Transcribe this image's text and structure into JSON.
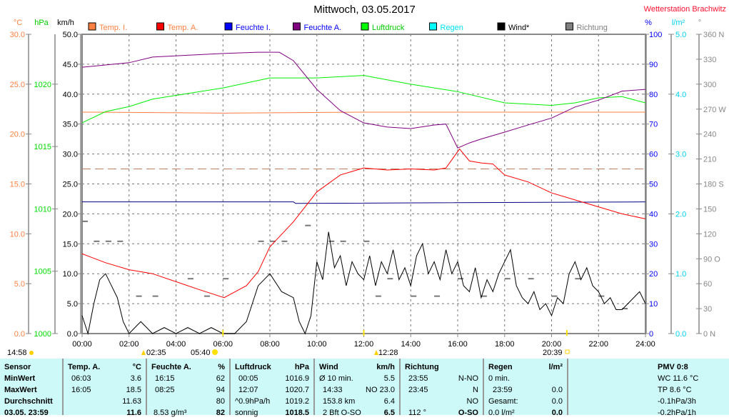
{
  "header": {
    "title": "Mittwoch, 03.05.2017",
    "station": "Wetterstation Brachwitz"
  },
  "axes_units": {
    "temp": "°C",
    "pressure": "hPa",
    "wind": "km/h",
    "humidity": "%",
    "rain": "l/m²",
    "direction": "°"
  },
  "legend": [
    {
      "label": "Temp. I.",
      "color": "#ff8040",
      "text_color": "#ff8040"
    },
    {
      "label": "Temp. A.",
      "color": "#ff0000",
      "text_color": "#ff8040"
    },
    {
      "label": "Feuchte I.",
      "color": "#0000ff",
      "text_color": "#0000ff"
    },
    {
      "label": "Feuchte A.",
      "color": "#800080",
      "text_color": "#0000ff"
    },
    {
      "label": "Luftdruck",
      "color": "#00ff00",
      "text_color": "#00cc00"
    },
    {
      "label": "Regen",
      "color": "#00ffff",
      "text_color": "#00e0f0"
    },
    {
      "label": "Wind*",
      "color": "#000000",
      "text_color": "#000000"
    },
    {
      "label": "Richtung",
      "color": "#808080",
      "text_color": "#808080"
    }
  ],
  "chart_data": {
    "type": "line",
    "title": "Mittwoch, 03.05.2017",
    "x_ticks": [
      "00:00",
      "02:00",
      "04:00",
      "06:00",
      "08:00",
      "10:00",
      "12:00",
      "14:00",
      "16:00",
      "18:00",
      "20:00",
      "22:00",
      "24:00"
    ],
    "xlim": [
      0,
      24
    ],
    "y_axes": {
      "temp": {
        "ticks": [
          "0.0",
          "5.0",
          "10.0",
          "15.0",
          "20.0",
          "25.0",
          "30.0"
        ],
        "range": [
          0,
          30
        ]
      },
      "pressure": {
        "ticks": [
          "1000",
          "1005",
          "1010",
          "1015",
          "1020"
        ],
        "range": [
          1000,
          1024
        ]
      },
      "wind": {
        "ticks": [
          "0.0",
          "5.0",
          "10.0",
          "15.0",
          "20.0",
          "25.0",
          "30.0",
          "35.0",
          "40.0",
          "45.0",
          "50.0"
        ],
        "range": [
          0,
          50
        ]
      },
      "humidity": {
        "ticks": [
          "0",
          "10",
          "20",
          "30",
          "40",
          "50",
          "60",
          "70",
          "80",
          "90",
          "100"
        ],
        "range": [
          0,
          100
        ]
      },
      "rain": {
        "ticks": [
          "0.0",
          "1.0",
          "2.0",
          "3.0",
          "4.0",
          "5.0"
        ],
        "range": [
          0,
          5
        ]
      },
      "direction": {
        "ticks": [
          "0 N",
          "30",
          "60",
          "90 O",
          "120",
          "150",
          "180 S",
          "210",
          "240",
          "270 W",
          "300",
          "330",
          "360 N"
        ],
        "range": [
          0,
          360
        ]
      }
    },
    "series": [
      {
        "name": "Temp. I.",
        "axis": "temp",
        "color": "#ff8040",
        "points": [
          [
            0,
            22.2
          ],
          [
            6,
            22.1
          ],
          [
            12,
            22.2
          ],
          [
            18,
            22.2
          ],
          [
            24,
            22.2
          ]
        ]
      },
      {
        "name": "Feuchte I.",
        "axis": "humidity",
        "color": "#000080",
        "points": [
          [
            0,
            44
          ],
          [
            9,
            44
          ],
          [
            9.1,
            43.5
          ],
          [
            24,
            44
          ]
        ]
      },
      {
        "name": "Luftdruck",
        "axis": "pressure",
        "color": "#00ee00",
        "points": [
          [
            0,
            1016.9
          ],
          [
            1,
            1017.8
          ],
          [
            2,
            1018.2
          ],
          [
            3,
            1018.8
          ],
          [
            4,
            1019.1
          ],
          [
            6,
            1019.7
          ],
          [
            8,
            1020.5
          ],
          [
            10,
            1020.5
          ],
          [
            12,
            1020.7
          ],
          [
            14,
            1020
          ],
          [
            16,
            1019.4
          ],
          [
            18,
            1018.5
          ],
          [
            20,
            1018.3
          ],
          [
            21,
            1018.5
          ],
          [
            22,
            1018.9
          ],
          [
            23,
            1019
          ],
          [
            24,
            1018.5
          ]
        ]
      },
      {
        "name": "Feuchte A.",
        "axis": "humidity",
        "color": "#800080",
        "points": [
          [
            0,
            89
          ],
          [
            2,
            90.5
          ],
          [
            3,
            92.4
          ],
          [
            6,
            93.6
          ],
          [
            7.5,
            94
          ],
          [
            8.4,
            94
          ],
          [
            9,
            91.2
          ],
          [
            10,
            81.6
          ],
          [
            11,
            74.5
          ],
          [
            12,
            70.4
          ],
          [
            13,
            69
          ],
          [
            14,
            68.5
          ],
          [
            15,
            69.7
          ],
          [
            15.5,
            70
          ],
          [
            16,
            62
          ],
          [
            16.5,
            63.7
          ],
          [
            17,
            65
          ],
          [
            18,
            67.3
          ],
          [
            19,
            69.7
          ],
          [
            20,
            72
          ],
          [
            21,
            75.7
          ],
          [
            22,
            78
          ],
          [
            23,
            81
          ],
          [
            24,
            81.6
          ]
        ]
      },
      {
        "name": "Temp. A.",
        "axis": "temp",
        "color": "#ff0000",
        "points": [
          [
            0,
            8
          ],
          [
            1,
            7.1
          ],
          [
            2,
            6.4
          ],
          [
            3,
            6
          ],
          [
            4,
            5.2
          ],
          [
            5,
            4.4
          ],
          [
            6.05,
            3.6
          ],
          [
            7,
            4.8
          ],
          [
            7.5,
            6.2
          ],
          [
            8,
            8.7
          ],
          [
            9,
            11.2
          ],
          [
            10,
            14.2
          ],
          [
            11,
            15.9
          ],
          [
            12,
            16.6
          ],
          [
            13,
            16.4
          ],
          [
            14,
            16.5
          ],
          [
            15,
            16.4
          ],
          [
            15.5,
            16.6
          ],
          [
            16.08,
            18.5
          ],
          [
            16.5,
            17.3
          ],
          [
            17,
            17.1
          ],
          [
            17.5,
            17
          ],
          [
            18,
            15.9
          ],
          [
            19,
            15.2
          ],
          [
            20,
            14.1
          ],
          [
            21,
            13.4
          ],
          [
            22,
            12.7
          ],
          [
            23,
            12
          ],
          [
            24,
            11.5
          ]
        ]
      },
      {
        "name": "Wind*",
        "axis": "wind",
        "color": "#000000",
        "points": [
          [
            0,
            3
          ],
          [
            0.25,
            0
          ],
          [
            0.5,
            5
          ],
          [
            0.75,
            9
          ],
          [
            1,
            10
          ],
          [
            1.25,
            8
          ],
          [
            1.5,
            6
          ],
          [
            1.75,
            2
          ],
          [
            2,
            0
          ],
          [
            2.5,
            2
          ],
          [
            3,
            0
          ],
          [
            3.5,
            1
          ],
          [
            4,
            0
          ],
          [
            4.5,
            1
          ],
          [
            5,
            0
          ],
          [
            5.5,
            1
          ],
          [
            6,
            0
          ],
          [
            6.5,
            0
          ],
          [
            7,
            2
          ],
          [
            7.25,
            5
          ],
          [
            7.5,
            8
          ],
          [
            7.75,
            9
          ],
          [
            8,
            10
          ],
          [
            8.5,
            7
          ],
          [
            9,
            6
          ],
          [
            9.25,
            2
          ],
          [
            9.5,
            0
          ],
          [
            9.75,
            3
          ],
          [
            10,
            12
          ],
          [
            10.25,
            9
          ],
          [
            10.5,
            17
          ],
          [
            10.75,
            11
          ],
          [
            11,
            13
          ],
          [
            11.25,
            8
          ],
          [
            11.5,
            12
          ],
          [
            11.75,
            10
          ],
          [
            12,
            9
          ],
          [
            12.25,
            13
          ],
          [
            12.5,
            8
          ],
          [
            12.75,
            12
          ],
          [
            13,
            10
          ],
          [
            13.25,
            14
          ],
          [
            13.5,
            9
          ],
          [
            13.75,
            11
          ],
          [
            14,
            8
          ],
          [
            14.25,
            13
          ],
          [
            14.5,
            15
          ],
          [
            14.75,
            10
          ],
          [
            15,
            12
          ],
          [
            15.25,
            9
          ],
          [
            15.5,
            14
          ],
          [
            15.75,
            10
          ],
          [
            16,
            12
          ],
          [
            16.25,
            8
          ],
          [
            16.5,
            7
          ],
          [
            16.75,
            11
          ],
          [
            17,
            6
          ],
          [
            17.25,
            9
          ],
          [
            17.5,
            7
          ],
          [
            17.75,
            10
          ],
          [
            18,
            12
          ],
          [
            18.25,
            14
          ],
          [
            18.5,
            8
          ],
          [
            18.75,
            6
          ],
          [
            19,
            5
          ],
          [
            19.25,
            7
          ],
          [
            19.5,
            4
          ],
          [
            19.75,
            5
          ],
          [
            20,
            3
          ],
          [
            20.25,
            6
          ],
          [
            20.5,
            5
          ],
          [
            20.75,
            10
          ],
          [
            21,
            12
          ],
          [
            21.25,
            9
          ],
          [
            21.5,
            11
          ],
          [
            21.75,
            8
          ],
          [
            22,
            7
          ],
          [
            22.25,
            5
          ],
          [
            22.5,
            6
          ],
          [
            22.75,
            4
          ],
          [
            23,
            4
          ],
          [
            23.25,
            5
          ],
          [
            23.5,
            6
          ],
          [
            23.75,
            7
          ],
          [
            24,
            5
          ]
        ]
      }
    ],
    "reference_line": {
      "axis": "wind",
      "value": 27.5,
      "color": "#c08060"
    },
    "direction_points": [
      [
        0,
        135
      ],
      [
        0.5,
        111
      ],
      [
        1,
        111
      ],
      [
        1.5,
        111
      ],
      [
        2.3,
        45
      ],
      [
        3,
        45
      ],
      [
        4.5,
        66
      ],
      [
        5.2,
        45
      ],
      [
        6,
        66
      ],
      [
        7.5,
        111
      ],
      [
        8,
        111
      ],
      [
        8.5,
        111
      ],
      [
        9.5,
        130
      ],
      [
        10.5,
        111
      ],
      [
        11,
        111
      ],
      [
        12,
        111
      ],
      [
        12.5,
        45
      ],
      [
        13,
        66
      ],
      [
        14,
        45
      ],
      [
        15,
        45
      ],
      [
        16,
        66
      ],
      [
        17,
        45
      ],
      [
        18,
        66
      ],
      [
        19,
        66
      ],
      [
        20,
        45
      ],
      [
        21,
        66
      ],
      [
        22,
        45
      ],
      [
        23,
        30
      ]
    ]
  },
  "astro": {
    "moonset": "14:58",
    "moonrise_icon_time": "02:35",
    "sunrise": "05:40",
    "moon_transit": "12:28",
    "sunset": "20:39"
  },
  "table": {
    "sensor": {
      "h": "Sensor",
      "r1": "MinWert",
      "r2": "MaxWert",
      "r3": "Durchschnitt",
      "r4": "03.05. 23:59"
    },
    "temp": {
      "h": "Temp. A.",
      "u": "°C",
      "t1": "06:03",
      "v1": "3.6",
      "t2": "16:05",
      "v2": "18.5",
      "v3": "11.63",
      "v4": "11.6"
    },
    "hum": {
      "h": "Feuchte A.",
      "u": "%",
      "t1": "16:15",
      "v1": "62",
      "t2": "08:25",
      "v2": "94",
      "v3": "80",
      "t4": "8.53 g/m³",
      "v4": "82"
    },
    "press": {
      "h": "Luftdruck",
      "u": "hPa",
      "t1": "00:05",
      "v1": "1016.9",
      "t2": "12:07",
      "v2": "1020.7",
      "t3": "^0.9hPa/h",
      "v3": "1019.2",
      "t4": "sonnig",
      "v4": "1018.5"
    },
    "wind": {
      "h": "Wind",
      "u": "km/h",
      "t1": "Ø 10 min.",
      "v1": "5.5",
      "t2": "14:33",
      "v2": "NO 23.0",
      "t3": "153.8 km",
      "v3": "6.4",
      "t4": "2 Bft O-SO",
      "v4": "6.5"
    },
    "dir": {
      "h": "Richtung",
      "t1": "23:55",
      "v1": "N-NO",
      "t2": "23:45",
      "v2": "N",
      "v3": "NO",
      "t4": "112 °",
      "v4": "O-SO"
    },
    "rain": {
      "h": "Regen",
      "u": "l/m²",
      "t1": "0 min.",
      "t2": "23:59",
      "v2": "0.0",
      "t3": "Gesamt:",
      "v3": "0.0",
      "t4": "0.0 l/m²",
      "v4": "0.0"
    },
    "pmv": {
      "h": "PMV 0:8",
      "r1": "WC 11.6 °C",
      "r2": "TP 8.6 °C",
      "r3": "-0.1hPa/3h",
      "r4": "-0.2hPa/1h"
    }
  }
}
